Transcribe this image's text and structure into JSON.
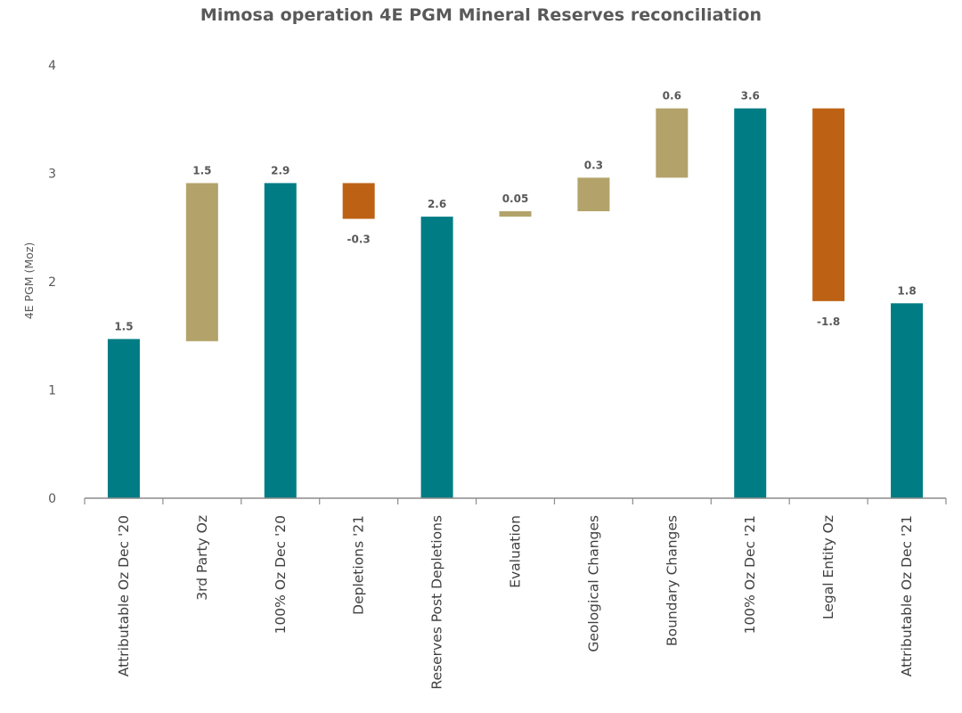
{
  "chart_data": {
    "type": "bar",
    "subtype": "waterfall",
    "title": "Mimosa operation 4E PGM Mineral Reserves reconciliation",
    "ylabel": "4E PGM (Moz)",
    "xlabel": "",
    "ylim": [
      0,
      4
    ],
    "yticks": [
      "0",
      "1",
      "2",
      "3",
      "4"
    ],
    "grid": false,
    "colors": {
      "total": "#007C84",
      "increase": "#B3A36A",
      "decrease": "#BD6214",
      "axis": "#8C8C8C"
    },
    "bars": [
      {
        "category": "Attributable Oz Dec '20",
        "kind": "total",
        "start": 0,
        "end": 1.47,
        "label": "1.5",
        "label_pos": "above"
      },
      {
        "category": "3rd Party Oz",
        "kind": "increase",
        "start": 1.45,
        "end": 2.91,
        "label": "1.5",
        "label_pos": "above"
      },
      {
        "category": "100% Oz Dec '20",
        "kind": "total",
        "start": 0,
        "end": 2.91,
        "label": "2.9",
        "label_pos": "above"
      },
      {
        "category": "Depletions '21",
        "kind": "decrease",
        "start": 2.91,
        "end": 2.58,
        "label": "-0.3",
        "label_pos": "below"
      },
      {
        "category": "Reserves Post Depletions",
        "kind": "total",
        "start": 0,
        "end": 2.6,
        "label": "2.6",
        "label_pos": "above"
      },
      {
        "category": "Evaluation",
        "kind": "increase",
        "start": 2.6,
        "end": 2.65,
        "label": "0.05",
        "label_pos": "above"
      },
      {
        "category": "Geological Changes",
        "kind": "increase",
        "start": 2.65,
        "end": 2.96,
        "label": "0.3",
        "label_pos": "above"
      },
      {
        "category": "Boundary Changes",
        "kind": "increase",
        "start": 2.96,
        "end": 3.6,
        "label": "0.6",
        "label_pos": "above"
      },
      {
        "category": "100% Oz Dec '21",
        "kind": "total",
        "start": 0,
        "end": 3.6,
        "label": "3.6",
        "label_pos": "above"
      },
      {
        "category": "Legal Entity Oz",
        "kind": "decrease",
        "start": 3.6,
        "end": 1.82,
        "label": "-1.8",
        "label_pos": "below"
      },
      {
        "category": "Attributable Oz Dec '21",
        "kind": "total",
        "start": 0,
        "end": 1.8,
        "label": "1.8",
        "label_pos": "above"
      }
    ]
  }
}
